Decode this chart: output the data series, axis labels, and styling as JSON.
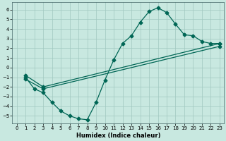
{
  "xlabel": "Humidex (Indice chaleur)",
  "bg_color": "#c8e8e0",
  "grid_color": "#a0c8c0",
  "line_color": "#006655",
  "xlim": [
    -0.5,
    23.5
  ],
  "ylim": [
    -5.8,
    6.8
  ],
  "xticks": [
    0,
    1,
    2,
    3,
    4,
    5,
    6,
    7,
    8,
    9,
    10,
    11,
    12,
    13,
    14,
    15,
    16,
    17,
    18,
    19,
    20,
    21,
    22,
    23
  ],
  "yticks": [
    -5,
    -4,
    -3,
    -2,
    -1,
    0,
    1,
    2,
    3,
    4,
    5,
    6
  ],
  "line1_x": [
    1,
    2,
    3,
    4,
    5,
    6,
    7,
    8,
    9,
    10,
    11,
    12,
    13,
    14,
    15,
    16,
    17,
    18,
    19,
    20,
    21,
    22,
    23
  ],
  "line1_y": [
    -1.0,
    -2.2,
    -2.6,
    -3.6,
    -4.5,
    -5.0,
    -5.3,
    -5.4,
    -3.6,
    -1.3,
    0.8,
    2.5,
    3.3,
    4.7,
    5.8,
    6.2,
    5.7,
    4.5,
    3.4,
    3.3,
    2.7,
    2.5,
    2.5
  ],
  "line2_x": [
    1,
    3,
    23
  ],
  "line2_y": [
    -1.2,
    -2.2,
    2.2
  ],
  "line3_x": [
    1,
    3,
    23
  ],
  "line3_y": [
    -0.8,
    -2.0,
    2.5
  ],
  "marker": "D",
  "markersize": 2.5,
  "linewidth": 0.9,
  "tick_fontsize": 5,
  "xlabel_fontsize": 6
}
